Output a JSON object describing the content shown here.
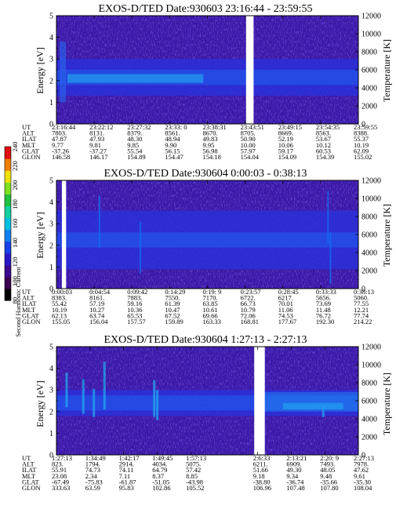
{
  "colorbar": {
    "label": "Second Harmonic Current",
    "ticks": [
      "80",
      "100",
      "120",
      "140",
      "160",
      "180",
      "200",
      "220",
      "240"
    ],
    "colors": [
      "#000000",
      "#3a0050",
      "#3c0a8c",
      "#2a18c8",
      "#1840e8",
      "#1080f0",
      "#00c0e0",
      "#10d0a0",
      "#20c040",
      "#80e020",
      "#f0e000",
      "#f08000",
      "#e01010"
    ]
  },
  "y_left_label": "Energy [eV]",
  "y_right_label": "Temperature [K]",
  "row_labels": [
    "UT",
    "ALT",
    "ILAT",
    "MLT",
    "GLAT",
    "GLON"
  ],
  "chart_data": [
    {
      "type": "heatmap",
      "title": "EXOS-D/TED   Date:930603  23:16:44 - 23:59:55",
      "ylim": [
        0,
        5
      ],
      "y_ticks": [
        "0",
        "1",
        "2",
        "3",
        "4",
        "5"
      ],
      "y2lim": [
        0,
        12000
      ],
      "y2_ticks": [
        "0",
        "2000",
        "4000",
        "6000",
        "8000",
        "10000",
        "12000"
      ],
      "columns": [
        [
          "23:16:44",
          "7803.",
          "47.87",
          "9.77",
          "-37.26",
          "146.58"
        ],
        [
          "23:22:12",
          "8131.",
          "47.93",
          "9.81",
          "-37.27",
          "146.17"
        ],
        [
          "23:27:32",
          "8379.",
          "48.30",
          "9.85",
          "55.54",
          "154.89"
        ],
        [
          "23:33: 0",
          "8561.",
          "48.94",
          "9.90",
          "56.15",
          "154.47"
        ],
        [
          "23:38:31",
          "8670.",
          "49.83",
          "9.95",
          "56.98",
          "154.18"
        ],
        [
          "23:43:51",
          "8705.",
          "50.90",
          "10.00",
          "57.97",
          "154.04"
        ],
        [
          "23:49:15",
          "8669.",
          "52.19",
          "10.06",
          "59.17",
          "154.09"
        ],
        [
          "23:54:35",
          "8563.",
          "53.67",
          "10.12",
          "60.53",
          "154.39"
        ],
        [
          "23:59:55",
          "8388.",
          "55.37",
          "10.19",
          "62.09",
          "155.02"
        ]
      ],
      "data_gaps": [
        [
          0.628,
          0.653
        ]
      ],
      "band_eV": [
        1.3,
        3.0
      ]
    },
    {
      "type": "heatmap",
      "title": "EXOS-D/TED   Date:930604   0:00:03 - 0:38:13",
      "ylim": [
        0,
        5
      ],
      "y_ticks": [
        "0",
        "1",
        "2",
        "3",
        "4",
        "5"
      ],
      "y2lim": [
        0,
        12000
      ],
      "y2_ticks": [
        "0",
        "2000",
        "4000",
        "6000",
        "8000",
        "10000",
        "12000"
      ],
      "columns": [
        [
          "0:00:03",
          "8383.",
          "55.42",
          "10.19",
          "62.13",
          "155.05"
        ],
        [
          "0:04:54",
          "8161.",
          "57.19",
          "10.27",
          "63.74",
          "156.04"
        ],
        [
          "0:09:42",
          "7883.",
          "59.16",
          "10.36",
          "65.53",
          "157.57"
        ],
        [
          "0:14:29",
          "7550.",
          "61.39",
          "10.47",
          "67.52",
          "159.89"
        ],
        [
          "0:19: 9",
          "7170.",
          "63.85",
          "10.61",
          "69.66",
          "163.33"
        ],
        [
          "0:23:57",
          "6722.",
          "66.73",
          "10.79",
          "72.06",
          "168.81"
        ],
        [
          "0:28:45",
          "6217.",
          "70.01",
          "11.06",
          "74.53",
          "177.67"
        ],
        [
          "0:33:33",
          "5656.",
          "73.69",
          "11.48",
          "76.72",
          "192.30"
        ],
        [
          "0:38:13",
          "5060.",
          "77.55",
          "12.21",
          "77.74",
          "214.22"
        ]
      ],
      "data_gaps": [
        [
          0.018,
          0.032
        ]
      ],
      "band_eV": [
        0.9,
        3.6
      ]
    },
    {
      "type": "heatmap",
      "title": "EXOS-D/TED   Date:930604   1:27:13 - 2:27:13",
      "ylim": [
        0,
        5
      ],
      "y_ticks": [
        "0",
        "1",
        "2",
        "3",
        "4",
        "5"
      ],
      "y2lim": [
        0,
        12000
      ],
      "y2_ticks": [
        "0",
        "2000",
        "4000",
        "6000",
        "8000",
        "10000",
        "12000"
      ],
      "columns": [
        [
          "1:27:13",
          "823.",
          "55.91",
          "23.08",
          "-67.49",
          "333.63"
        ],
        [
          "1:34:49",
          "1794.",
          "74.73",
          "2.34",
          "-75.83",
          "63.59"
        ],
        [
          "1:42:17",
          "2914.",
          "74.11",
          "7.11",
          "-61.87",
          "95.83"
        ],
        [
          "1:49:45",
          "4034.",
          "64.79",
          "8.37",
          "-51.05",
          "102.86"
        ],
        [
          "1:57:13",
          "5075.",
          "57.42",
          "8.85",
          "-43.98",
          "105.52"
        ],
        [
          "",
          "",
          "",
          "",
          "",
          ""
        ],
        [
          "2:6:33",
          "6211.",
          "51.66",
          "9.18",
          "-38.80",
          "106.96"
        ],
        [
          "2:13:21",
          "6909.",
          "49.30",
          "9.34",
          "-36.74",
          "107.48"
        ],
        [
          "2:20: 9",
          "7493.",
          "48.05",
          "9.48",
          "-35.66",
          "107.80"
        ],
        [
          "2:27:13",
          "7978.",
          "47.62",
          "9.61",
          "-35.30",
          "108.04"
        ]
      ],
      "data_gaps": [
        [
          0.655,
          0.69
        ]
      ],
      "band_eV": [
        1.8,
        3.0
      ]
    }
  ]
}
